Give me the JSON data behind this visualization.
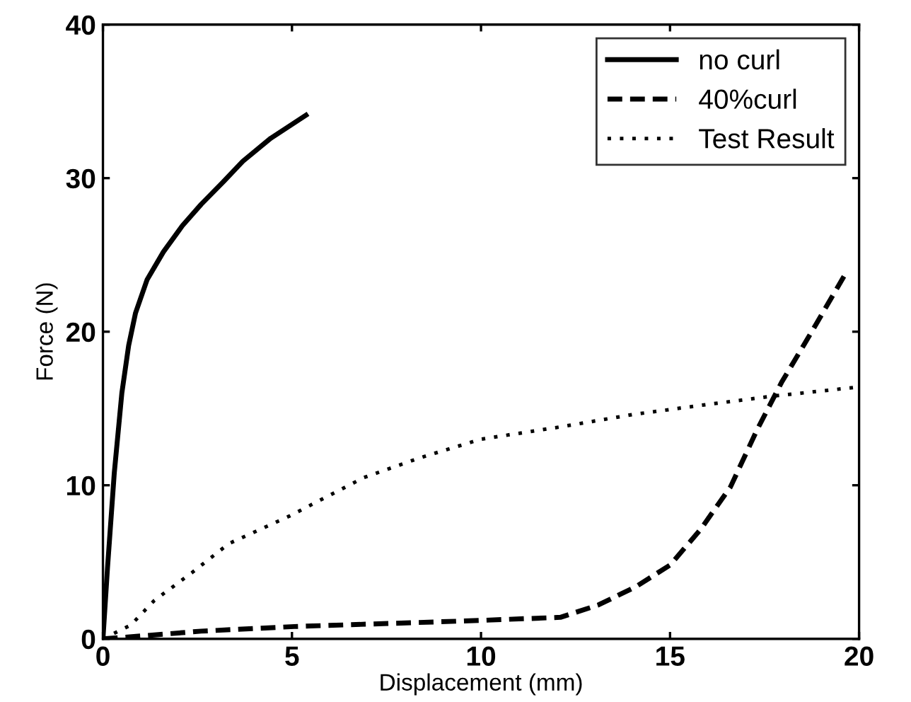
{
  "chart_data": {
    "type": "line",
    "xlabel": "Displacement (mm)",
    "ylabel": "Force (N)",
    "xlim": [
      0,
      20
    ],
    "ylim": [
      0,
      40
    ],
    "xticks": [
      0,
      5,
      10,
      15,
      20
    ],
    "yticks": [
      0,
      10,
      20,
      30,
      40
    ],
    "grid": false,
    "legend": "top right",
    "marker": "none",
    "series": [
      {
        "name": "no curl",
        "color": "#000000",
        "line_style": "solid",
        "x": [
          0,
          0.12,
          0.3,
          0.5,
          0.68,
          0.86,
          1.17,
          1.6,
          2.1,
          2.6,
          3.2,
          3.7,
          4.44,
          5.37
        ],
        "values": [
          0,
          4.6,
          10.8,
          16,
          19.1,
          21.2,
          23.4,
          25.2,
          26.9,
          28.3,
          29.8,
          31.1,
          32.6,
          34.1
        ]
      },
      {
        "name": "40%curl",
        "color": "#000000",
        "line_style": "dashed",
        "x": [
          0,
          1.1,
          2.6,
          5.06,
          8.8,
          10,
          12.1,
          13.1,
          14.1,
          15,
          15.8,
          16.6,
          17.3,
          17.95,
          18.7,
          19.6
        ],
        "values": [
          0,
          0.2,
          0.5,
          0.8,
          1.1,
          1.2,
          1.4,
          2.2,
          3.4,
          4.8,
          7.1,
          9.9,
          13.6,
          16.7,
          19.8,
          23.6
        ]
      },
      {
        "name": "Test Result",
        "color": "#000000",
        "line_style": "dotted",
        "x": [
          0,
          0.74,
          1.36,
          2.35,
          3.33,
          4.94,
          6.9,
          8.4,
          10,
          12.1,
          14,
          15.8,
          17.7,
          20
        ],
        "values": [
          0,
          0.9,
          2.5,
          4.3,
          6.2,
          8.0,
          10.5,
          11.8,
          13.0,
          13.8,
          14.6,
          15.2,
          15.8,
          16.4
        ]
      }
    ]
  }
}
